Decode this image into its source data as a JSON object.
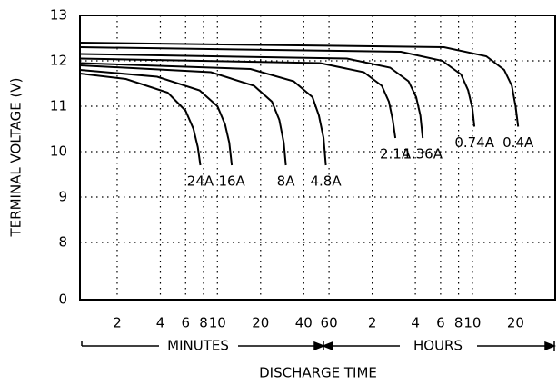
{
  "chart_data": {
    "type": "line",
    "y_label": "TERMINAL VOLTAGE (V)",
    "x_label": "DISCHARGE TIME",
    "annotations": [
      "MINUTES",
      "HOURS"
    ],
    "xscale": "log",
    "grid": true,
    "color": "#000000",
    "xlim": [
      1.1,
      2300
    ],
    "ylim": [
      0,
      13
    ],
    "yticks": [
      0,
      8,
      9,
      10,
      11,
      12,
      13
    ],
    "xticks": [
      2,
      4,
      6,
      8,
      10,
      20,
      40,
      60,
      {
        "value": 120,
        "label": "2"
      },
      {
        "value": 240,
        "label": "4"
      },
      {
        "value": 360,
        "label": "6"
      },
      {
        "value": 480,
        "label": "8"
      },
      {
        "value": 600,
        "label": "10"
      },
      {
        "value": 1200,
        "label": "20"
      }
    ],
    "series": [
      {
        "name": "24A",
        "x": [
          1.1,
          2.3,
          4.5,
          6,
          6.8,
          7.3,
          7.6
        ],
        "values": [
          11.72,
          11.6,
          11.3,
          10.9,
          10.5,
          10.1,
          9.7
        ]
      },
      {
        "name": "16A",
        "x": [
          1.1,
          3.8,
          7.5,
          10,
          11.3,
          12.1,
          12.6
        ],
        "values": [
          11.8,
          11.65,
          11.35,
          11.0,
          10.6,
          10.2,
          9.7
        ]
      },
      {
        "name": "8A",
        "x": [
          1.1,
          9,
          18,
          24,
          27,
          29,
          30
        ],
        "values": [
          11.9,
          11.75,
          11.45,
          11.1,
          10.7,
          10.2,
          9.7
        ]
      },
      {
        "name": "4.8A",
        "x": [
          1.1,
          17,
          34,
          46,
          51,
          55,
          57
        ],
        "values": [
          11.95,
          11.82,
          11.55,
          11.2,
          10.8,
          10.3,
          9.7
        ]
      },
      {
        "name": "2.1A",
        "x": [
          1.1,
          52,
          105,
          140,
          157,
          167,
          174
        ],
        "values": [
          12.05,
          11.95,
          11.75,
          11.45,
          11.1,
          10.7,
          10.3
        ]
      },
      {
        "name": "1.36A",
        "x": [
          1.1,
          80,
          160,
          215,
          243,
          260,
          270
        ],
        "values": [
          12.15,
          12.05,
          11.85,
          11.55,
          11.2,
          10.8,
          10.3
        ]
      },
      {
        "name": "0.74A",
        "x": [
          1.1,
          190,
          370,
          500,
          560,
          600,
          620
        ],
        "values": [
          12.3,
          12.2,
          12.0,
          11.7,
          11.35,
          10.95,
          10.55
        ]
      },
      {
        "name": "0.4A",
        "x": [
          1.1,
          380,
          750,
          1000,
          1130,
          1200,
          1250
        ],
        "values": [
          12.4,
          12.3,
          12.1,
          11.8,
          11.45,
          11.0,
          10.55
        ]
      }
    ]
  }
}
